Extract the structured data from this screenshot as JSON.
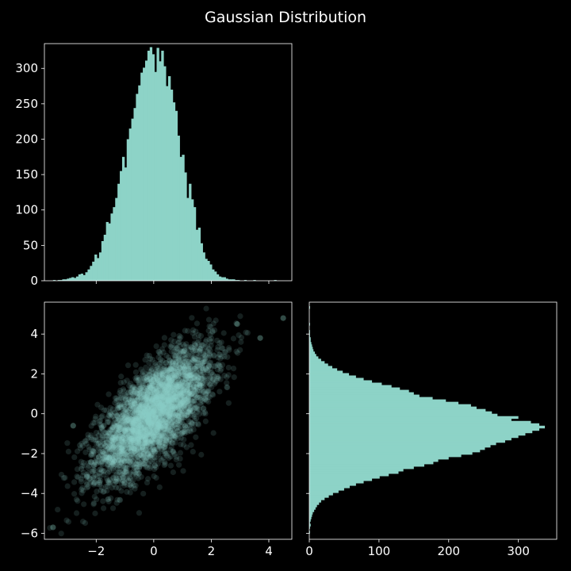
{
  "chart_data": {
    "type": "scatter",
    "title": "Gaussian Distribution",
    "style": {
      "background": "#000000",
      "mark_color": "#8dd3c7",
      "text_color": "#ffffff",
      "scatter_alpha": 0.15
    },
    "panels": {
      "top_histogram": {
        "type": "bar",
        "orientation": "vertical",
        "xlim": [
          -3.8,
          4.8
        ],
        "ylim": [
          0,
          335
        ],
        "yticks": [
          0,
          50,
          100,
          150,
          200,
          250,
          300
        ],
        "xticks": [
          -2,
          0,
          2,
          4
        ],
        "show_xtick_labels": false,
        "bin_start": -3.5,
        "bin_width": 0.08,
        "counts": [
          1,
          0,
          1,
          1,
          2,
          2,
          3,
          4,
          5,
          4,
          6,
          9,
          10,
          8,
          12,
          16,
          21,
          27,
          37,
          32,
          40,
          56,
          65,
          83,
          81,
          95,
          104,
          117,
          137,
          155,
          175,
          160,
          200,
          215,
          229,
          244,
          264,
          276,
          294,
          301,
          311,
          325,
          330,
          320,
          295,
          329,
          310,
          325,
          303,
          275,
          289,
          270,
          252,
          240,
          205,
          175,
          178,
          153,
          117,
          137,
          115,
          104,
          72,
          75,
          53,
          40,
          31,
          28,
          23,
          16,
          13,
          9,
          6,
          5,
          5,
          3,
          2,
          2,
          2,
          1,
          1,
          0,
          0,
          1,
          0,
          0,
          0,
          1,
          0,
          0,
          0,
          0,
          0,
          0,
          0,
          0,
          1
        ],
        "counts_note": "heights per bin"
      },
      "scatter": {
        "type": "scatter",
        "xlim": [
          -3.8,
          4.8
        ],
        "ylim": [
          -6.3,
          5.6
        ],
        "xticks": [
          -2,
          0,
          2,
          4
        ],
        "yticks": [
          -6,
          -4,
          -2,
          0,
          2,
          4
        ],
        "xtick_labels": [
          "−2",
          "0",
          "2",
          "4"
        ],
        "ytick_labels": [
          "−6",
          "−4",
          "−2",
          "0",
          "2",
          "4"
        ],
        "points": 10000,
        "distribution": {
          "mean": [
            0,
            0
          ],
          "std": [
            1,
            1.6
          ],
          "correlation": 0.7
        },
        "outliers": [
          [
            4.5,
            4.8
          ],
          [
            -3.5,
            -5.7
          ],
          [
            3.7,
            3.8
          ],
          [
            -2.8,
            -0.6
          ],
          [
            2.9,
            4.5
          ]
        ]
      },
      "right_histogram": {
        "type": "bar",
        "orientation": "horizontal",
        "xlim": [
          0,
          355
        ],
        "ylim": [
          -6.3,
          5.6
        ],
        "xticks": [
          0,
          100,
          200,
          300
        ],
        "xtick_labels": [
          "0",
          "100",
          "200",
          "300"
        ],
        "yticks": [
          -6,
          -4,
          -2,
          0,
          2,
          4
        ],
        "show_ytick_labels": false,
        "bin_start": -6.0,
        "bin_width": 0.12,
        "counts": [
          1,
          0,
          1,
          2,
          1,
          2,
          3,
          4,
          5,
          7,
          9,
          11,
          14,
          17,
          22,
          28,
          34,
          42,
          50,
          58,
          67,
          78,
          90,
          101,
          114,
          128,
          135,
          150,
          165,
          178,
          185,
          200,
          218,
          234,
          245,
          252,
          260,
          268,
          281,
          290,
          300,
          310,
          320,
          330,
          338,
          330,
          318,
          290,
          300,
          270,
          262,
          253,
          240,
          232,
          214,
          196,
          177,
          158,
          150,
          143,
          130,
          118,
          104,
          90,
          78,
          67,
          57,
          48,
          40,
          33,
          27,
          22,
          17,
          13,
          10,
          8,
          6,
          5,
          4,
          3,
          2,
          2,
          1,
          1,
          1,
          0,
          0,
          1,
          0,
          0,
          0,
          0,
          0,
          0,
          1
        ],
        "counts_note": "lengths per bin"
      }
    }
  }
}
